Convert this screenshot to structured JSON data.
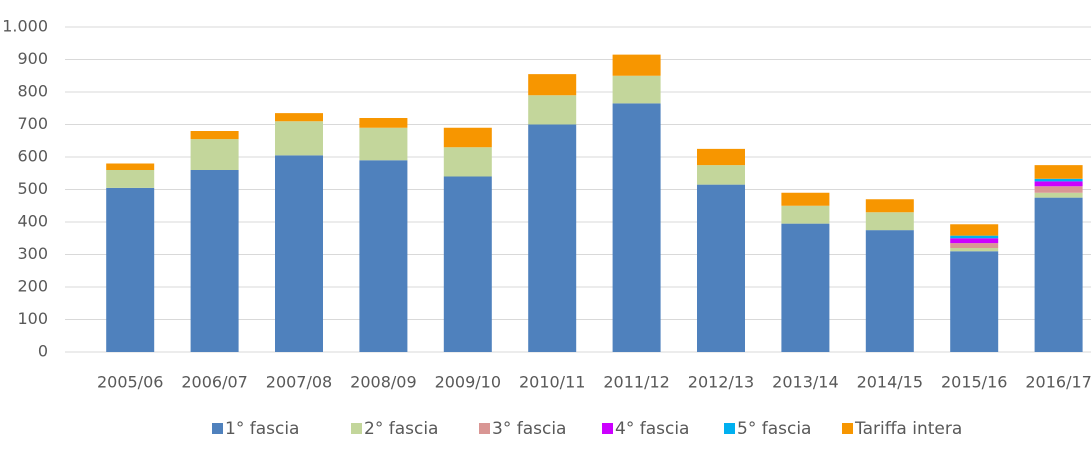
{
  "chart_data": {
    "type": "stacked_bar",
    "categories": [
      "2005/06",
      "2006/07",
      "2007/08",
      "2008/09",
      "2009/10",
      "2010/11",
      "2011/12",
      "2012/13",
      "2013/14",
      "2014/15",
      "2015/16",
      "2016/17"
    ],
    "series": [
      {
        "name": "1° fascia",
        "color": "#4f81bd",
        "values": [
          505,
          560,
          605,
          590,
          540,
          700,
          765,
          515,
          395,
          375,
          310,
          475
        ]
      },
      {
        "name": "2° fascia",
        "color": "#c3d69b",
        "values": [
          55,
          95,
          105,
          100,
          90,
          90,
          85,
          60,
          55,
          55,
          10,
          15
        ]
      },
      {
        "name": "3° fascia",
        "color": "#d99694",
        "values": [
          null,
          null,
          null,
          null,
          null,
          null,
          null,
          null,
          null,
          null,
          15,
          20
        ]
      },
      {
        "name": "4° fascia",
        "color": "#cc00ff",
        "values": [
          null,
          null,
          null,
          null,
          null,
          null,
          null,
          null,
          null,
          null,
          15,
          15
        ]
      },
      {
        "name": "5° fascia",
        "color": "#00b0f0",
        "values": [
          null,
          null,
          null,
          null,
          null,
          null,
          null,
          null,
          null,
          null,
          8,
          8
        ]
      },
      {
        "name": "Tariffa intera",
        "color": "#f79600",
        "values": [
          20,
          25,
          25,
          30,
          60,
          65,
          65,
          50,
          40,
          40,
          35,
          42
        ]
      }
    ],
    "ylim": [
      0,
      1000
    ],
    "yticks": [
      0,
      100,
      200,
      300,
      400,
      500,
      600,
      700,
      800,
      900,
      {
        "value": 1000,
        "label": "1.000"
      }
    ],
    "grid": true,
    "legend": "bottom"
  }
}
